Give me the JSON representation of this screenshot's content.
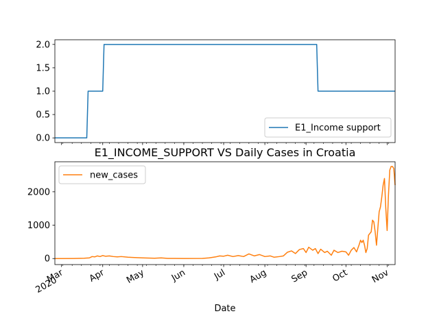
{
  "chart_data": [
    {
      "type": "line",
      "title": "",
      "xlabel": "",
      "ylabel": "",
      "ylim": [
        -0.1,
        2.1
      ],
      "yticks": [
        "0.0",
        "0.5",
        "1.0",
        "1.5",
        "2.0"
      ],
      "ytick_values": [
        0.0,
        0.5,
        1.0,
        1.5,
        2.0
      ],
      "legend": "bottom-right",
      "grid": false,
      "series": [
        {
          "name": "E1_Income support",
          "color": "#1f77b4",
          "points": [
            [
              "2020-02-25",
              0
            ],
            [
              "2020-03-20",
              0
            ],
            [
              "2020-03-21",
              1
            ],
            [
              "2020-04-01",
              1
            ],
            [
              "2020-04-02",
              2
            ],
            [
              "2020-09-09",
              2
            ],
            [
              "2020-09-10",
              1
            ],
            [
              "2020-11-07",
              1
            ]
          ]
        }
      ]
    },
    {
      "type": "line",
      "title": "E1_INCOME_SUPPORT VS Daily Cases in Croatia",
      "xlabel": "Date",
      "ylabel": "",
      "ylim": [
        -180,
        2900
      ],
      "yticks": [
        "0",
        "1000",
        "2000"
      ],
      "ytick_values": [
        0,
        1000,
        2000
      ],
      "xticks": [
        "Mar\n2020",
        "Apr",
        "May",
        "Jun",
        "Jul",
        "Aug",
        "Sep",
        "Oct",
        "Nov"
      ],
      "xtick_dates": [
        "2020-03-01",
        "2020-04-01",
        "2020-05-01",
        "2020-06-01",
        "2020-07-01",
        "2020-08-01",
        "2020-09-01",
        "2020-10-01",
        "2020-11-01"
      ],
      "legend": "top-left",
      "grid": false,
      "series": [
        {
          "name": "new_cases",
          "color": "#ff7f0e",
          "points": [
            [
              "2020-02-25",
              0
            ],
            [
              "2020-03-10",
              2
            ],
            [
              "2020-03-18",
              10
            ],
            [
              "2020-03-22",
              20
            ],
            [
              "2020-03-24",
              60
            ],
            [
              "2020-03-26",
              50
            ],
            [
              "2020-03-28",
              80
            ],
            [
              "2020-03-30",
              60
            ],
            [
              "2020-04-01",
              90
            ],
            [
              "2020-04-03",
              70
            ],
            [
              "2020-04-06",
              80
            ],
            [
              "2020-04-09",
              60
            ],
            [
              "2020-04-12",
              50
            ],
            [
              "2020-04-15",
              60
            ],
            [
              "2020-04-20",
              40
            ],
            [
              "2020-04-25",
              30
            ],
            [
              "2020-05-01",
              20
            ],
            [
              "2020-05-10",
              10
            ],
            [
              "2020-05-15",
              20
            ],
            [
              "2020-05-20",
              5
            ],
            [
              "2020-06-01",
              2
            ],
            [
              "2020-06-15",
              5
            ],
            [
              "2020-06-20",
              20
            ],
            [
              "2020-06-25",
              50
            ],
            [
              "2020-06-28",
              80
            ],
            [
              "2020-07-01",
              70
            ],
            [
              "2020-07-04",
              100
            ],
            [
              "2020-07-08",
              60
            ],
            [
              "2020-07-12",
              90
            ],
            [
              "2020-07-16",
              60
            ],
            [
              "2020-07-20",
              140
            ],
            [
              "2020-07-24",
              80
            ],
            [
              "2020-07-28",
              120
            ],
            [
              "2020-08-01",
              60
            ],
            [
              "2020-08-05",
              80
            ],
            [
              "2020-08-08",
              40
            ],
            [
              "2020-08-12",
              60
            ],
            [
              "2020-08-15",
              80
            ],
            [
              "2020-08-18",
              190
            ],
            [
              "2020-08-21",
              230
            ],
            [
              "2020-08-24",
              150
            ],
            [
              "2020-08-27",
              270
            ],
            [
              "2020-08-30",
              300
            ],
            [
              "2020-09-01",
              180
            ],
            [
              "2020-09-03",
              340
            ],
            [
              "2020-09-06",
              250
            ],
            [
              "2020-09-08",
              300
            ],
            [
              "2020-09-10",
              150
            ],
            [
              "2020-09-12",
              280
            ],
            [
              "2020-09-15",
              180
            ],
            [
              "2020-09-17",
              220
            ],
            [
              "2020-09-20",
              100
            ],
            [
              "2020-09-22",
              250
            ],
            [
              "2020-09-25",
              180
            ],
            [
              "2020-09-28",
              220
            ],
            [
              "2020-10-01",
              200
            ],
            [
              "2020-10-03",
              100
            ],
            [
              "2020-10-05",
              250
            ],
            [
              "2020-10-07",
              330
            ],
            [
              "2020-10-09",
              200
            ],
            [
              "2020-10-11",
              420
            ],
            [
              "2020-10-12",
              550
            ],
            [
              "2020-10-13",
              480
            ],
            [
              "2020-10-14",
              550
            ],
            [
              "2020-10-15",
              400
            ],
            [
              "2020-10-16",
              180
            ],
            [
              "2020-10-17",
              300
            ],
            [
              "2020-10-18",
              700
            ],
            [
              "2020-10-20",
              800
            ],
            [
              "2020-10-21",
              1150
            ],
            [
              "2020-10-22",
              1100
            ],
            [
              "2020-10-23",
              800
            ],
            [
              "2020-10-24",
              400
            ],
            [
              "2020-10-25",
              900
            ],
            [
              "2020-10-26",
              1400
            ],
            [
              "2020-10-27",
              1550
            ],
            [
              "2020-10-28",
              1850
            ],
            [
              "2020-10-29",
              2200
            ],
            [
              "2020-10-30",
              2400
            ],
            [
              "2020-10-31",
              1500
            ],
            [
              "2020-11-01",
              840
            ],
            [
              "2020-11-02",
              1900
            ],
            [
              "2020-11-03",
              2650
            ],
            [
              "2020-11-04",
              2760
            ],
            [
              "2020-11-05",
              2760
            ],
            [
              "2020-11-06",
              2700
            ],
            [
              "2020-11-07",
              2200
            ]
          ]
        }
      ]
    }
  ]
}
